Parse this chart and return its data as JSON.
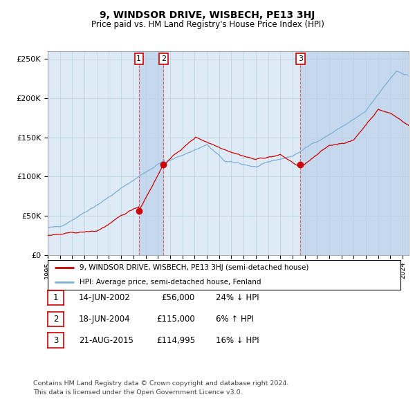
{
  "title": "9, WINDSOR DRIVE, WISBECH, PE13 3HJ",
  "subtitle": "Price paid vs. HM Land Registry's House Price Index (HPI)",
  "xlim": [
    1995.0,
    2024.5
  ],
  "ylim": [
    0,
    260000
  ],
  "yticks": [
    0,
    50000,
    100000,
    150000,
    200000,
    250000
  ],
  "ytick_labels": [
    "£0",
    "£50K",
    "£100K",
    "£150K",
    "£200K",
    "£250K"
  ],
  "hpi_color": "#7bafd4",
  "price_color": "#cc0000",
  "plot_bg_color": "#deeaf5",
  "shade_color": "#c5d8ee",
  "legend_items": [
    "9, WINDSOR DRIVE, WISBECH, PE13 3HJ (semi-detached house)",
    "HPI: Average price, semi-detached house, Fenland"
  ],
  "transactions": [
    {
      "num": 1,
      "date": "14-JUN-2002",
      "price": "£56,000",
      "hpi": "24% ↓ HPI",
      "year": 2002.45,
      "value": 56000
    },
    {
      "num": 2,
      "date": "18-JUN-2004",
      "price": "£115,000",
      "hpi": "6% ↑ HPI",
      "year": 2004.46,
      "value": 115000
    },
    {
      "num": 3,
      "date": "21-AUG-2015",
      "price": "£114,995",
      "hpi": "16% ↓ HPI",
      "year": 2015.64,
      "value": 114995
    }
  ],
  "footer_lines": [
    "Contains HM Land Registry data © Crown copyright and database right 2024.",
    "This data is licensed under the Open Government Licence v3.0."
  ],
  "background_color": "#ffffff"
}
